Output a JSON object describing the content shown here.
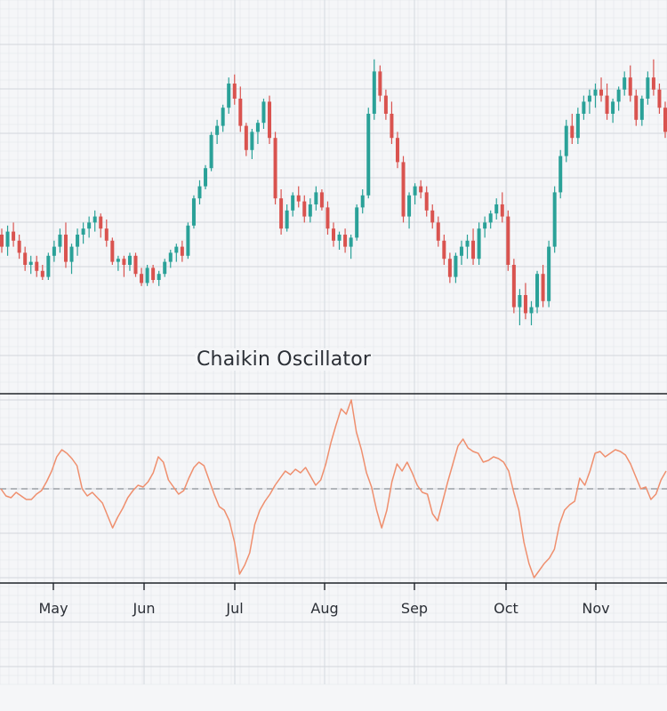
{
  "colors": {
    "background": "#f5f6f8",
    "grid_minor": "#e3e6ea",
    "grid_major": "#d2d6dc",
    "up_candle": "#2aa198",
    "down_candle": "#d9534f",
    "oscillator_line": "#ef8f6e",
    "zero_line": "#8a8f96",
    "divider": "#1f2329"
  },
  "chart_data": [
    {
      "type": "candlestick",
      "title": "",
      "x_ticks": [
        "May",
        "Jun",
        "Jul",
        "Aug",
        "Sep",
        "Oct",
        "Nov"
      ],
      "ylim": [
        0,
        100
      ],
      "grid": true,
      "candles": [
        {
          "o": 40,
          "h": 42,
          "l": 34,
          "c": 36
        },
        {
          "o": 36,
          "h": 43,
          "l": 33,
          "c": 41
        },
        {
          "o": 41,
          "h": 44,
          "l": 36,
          "c": 38
        },
        {
          "o": 38,
          "h": 40,
          "l": 32,
          "c": 34
        },
        {
          "o": 34,
          "h": 36,
          "l": 28,
          "c": 30
        },
        {
          "o": 30,
          "h": 33,
          "l": 27,
          "c": 31
        },
        {
          "o": 31,
          "h": 33,
          "l": 26,
          "c": 28
        },
        {
          "o": 28,
          "h": 30,
          "l": 25,
          "c": 26
        },
        {
          "o": 26,
          "h": 34,
          "l": 25,
          "c": 33
        },
        {
          "o": 33,
          "h": 38,
          "l": 31,
          "c": 36
        },
        {
          "o": 36,
          "h": 42,
          "l": 34,
          "c": 40
        },
        {
          "o": 40,
          "h": 44,
          "l": 29,
          "c": 31
        },
        {
          "o": 31,
          "h": 37,
          "l": 27,
          "c": 36
        },
        {
          "o": 36,
          "h": 42,
          "l": 33,
          "c": 40
        },
        {
          "o": 40,
          "h": 44,
          "l": 37,
          "c": 42
        },
        {
          "o": 42,
          "h": 46,
          "l": 39,
          "c": 44
        },
        {
          "o": 44,
          "h": 48,
          "l": 41,
          "c": 46
        },
        {
          "o": 46,
          "h": 47,
          "l": 39,
          "c": 42
        },
        {
          "o": 42,
          "h": 45,
          "l": 36,
          "c": 38
        },
        {
          "o": 38,
          "h": 39,
          "l": 30,
          "c": 31
        },
        {
          "o": 31,
          "h": 33,
          "l": 28,
          "c": 32
        },
        {
          "o": 32,
          "h": 33,
          "l": 26,
          "c": 30
        },
        {
          "o": 30,
          "h": 34,
          "l": 28,
          "c": 33
        },
        {
          "o": 33,
          "h": 34,
          "l": 26,
          "c": 27
        },
        {
          "o": 27,
          "h": 29,
          "l": 23,
          "c": 24
        },
        {
          "o": 24,
          "h": 30,
          "l": 23,
          "c": 29
        },
        {
          "o": 29,
          "h": 30,
          "l": 24,
          "c": 25
        },
        {
          "o": 25,
          "h": 28,
          "l": 23,
          "c": 27
        },
        {
          "o": 27,
          "h": 32,
          "l": 26,
          "c": 31
        },
        {
          "o": 31,
          "h": 35,
          "l": 29,
          "c": 34
        },
        {
          "o": 34,
          "h": 37,
          "l": 31,
          "c": 36
        },
        {
          "o": 36,
          "h": 38,
          "l": 31,
          "c": 33
        },
        {
          "o": 33,
          "h": 44,
          "l": 32,
          "c": 43
        },
        {
          "o": 43,
          "h": 53,
          "l": 42,
          "c": 52
        },
        {
          "o": 52,
          "h": 58,
          "l": 50,
          "c": 56
        },
        {
          "o": 56,
          "h": 63,
          "l": 55,
          "c": 62
        },
        {
          "o": 62,
          "h": 74,
          "l": 61,
          "c": 73
        },
        {
          "o": 73,
          "h": 78,
          "l": 70,
          "c": 76
        },
        {
          "o": 76,
          "h": 83,
          "l": 74,
          "c": 82
        },
        {
          "o": 82,
          "h": 92,
          "l": 80,
          "c": 90
        },
        {
          "o": 90,
          "h": 93,
          "l": 83,
          "c": 85
        },
        {
          "o": 85,
          "h": 89,
          "l": 74,
          "c": 76
        },
        {
          "o": 76,
          "h": 77,
          "l": 66,
          "c": 68
        },
        {
          "o": 68,
          "h": 75,
          "l": 65,
          "c": 74
        },
        {
          "o": 74,
          "h": 78,
          "l": 70,
          "c": 77
        },
        {
          "o": 77,
          "h": 85,
          "l": 75,
          "c": 84
        },
        {
          "o": 84,
          "h": 86,
          "l": 70,
          "c": 72
        },
        {
          "o": 72,
          "h": 74,
          "l": 50,
          "c": 52
        },
        {
          "o": 52,
          "h": 55,
          "l": 40,
          "c": 42
        },
        {
          "o": 42,
          "h": 50,
          "l": 41,
          "c": 48
        },
        {
          "o": 48,
          "h": 54,
          "l": 46,
          "c": 53
        },
        {
          "o": 53,
          "h": 56,
          "l": 49,
          "c": 51
        },
        {
          "o": 51,
          "h": 53,
          "l": 44,
          "c": 46
        },
        {
          "o": 46,
          "h": 52,
          "l": 44,
          "c": 50
        },
        {
          "o": 50,
          "h": 56,
          "l": 48,
          "c": 54
        },
        {
          "o": 54,
          "h": 55,
          "l": 48,
          "c": 49
        },
        {
          "o": 49,
          "h": 51,
          "l": 40,
          "c": 42
        },
        {
          "o": 42,
          "h": 44,
          "l": 36,
          "c": 38
        },
        {
          "o": 38,
          "h": 41,
          "l": 35,
          "c": 40
        },
        {
          "o": 40,
          "h": 42,
          "l": 34,
          "c": 36
        },
        {
          "o": 36,
          "h": 40,
          "l": 32,
          "c": 39
        },
        {
          "o": 39,
          "h": 50,
          "l": 38,
          "c": 49
        },
        {
          "o": 49,
          "h": 55,
          "l": 47,
          "c": 53
        },
        {
          "o": 53,
          "h": 82,
          "l": 52,
          "c": 80
        },
        {
          "o": 80,
          "h": 98,
          "l": 78,
          "c": 94
        },
        {
          "o": 94,
          "h": 96,
          "l": 84,
          "c": 86
        },
        {
          "o": 86,
          "h": 88,
          "l": 78,
          "c": 80
        },
        {
          "o": 80,
          "h": 84,
          "l": 70,
          "c": 72
        },
        {
          "o": 72,
          "h": 74,
          "l": 62,
          "c": 64
        },
        {
          "o": 64,
          "h": 66,
          "l": 44,
          "c": 46
        },
        {
          "o": 46,
          "h": 54,
          "l": 42,
          "c": 53
        },
        {
          "o": 53,
          "h": 57,
          "l": 50,
          "c": 56
        },
        {
          "o": 56,
          "h": 58,
          "l": 52,
          "c": 54
        },
        {
          "o": 54,
          "h": 56,
          "l": 46,
          "c": 48
        },
        {
          "o": 48,
          "h": 50,
          "l": 42,
          "c": 44
        },
        {
          "o": 44,
          "h": 46,
          "l": 36,
          "c": 38
        },
        {
          "o": 38,
          "h": 40,
          "l": 30,
          "c": 32
        },
        {
          "o": 32,
          "h": 34,
          "l": 24,
          "c": 26
        },
        {
          "o": 26,
          "h": 34,
          "l": 24,
          "c": 33
        },
        {
          "o": 33,
          "h": 38,
          "l": 30,
          "c": 36
        },
        {
          "o": 36,
          "h": 40,
          "l": 32,
          "c": 38
        },
        {
          "o": 38,
          "h": 42,
          "l": 30,
          "c": 32
        },
        {
          "o": 32,
          "h": 44,
          "l": 30,
          "c": 42
        },
        {
          "o": 42,
          "h": 46,
          "l": 39,
          "c": 44
        },
        {
          "o": 44,
          "h": 48,
          "l": 42,
          "c": 47
        },
        {
          "o": 47,
          "h": 52,
          "l": 45,
          "c": 50
        },
        {
          "o": 50,
          "h": 54,
          "l": 44,
          "c": 46
        },
        {
          "o": 46,
          "h": 48,
          "l": 28,
          "c": 30
        },
        {
          "o": 30,
          "h": 32,
          "l": 14,
          "c": 16
        },
        {
          "o": 16,
          "h": 22,
          "l": 10,
          "c": 20
        },
        {
          "o": 20,
          "h": 24,
          "l": 12,
          "c": 14
        },
        {
          "o": 14,
          "h": 18,
          "l": 10,
          "c": 16
        },
        {
          "o": 16,
          "h": 28,
          "l": 14,
          "c": 27
        },
        {
          "o": 27,
          "h": 30,
          "l": 16,
          "c": 18
        },
        {
          "o": 18,
          "h": 38,
          "l": 16,
          "c": 36
        },
        {
          "o": 36,
          "h": 56,
          "l": 34,
          "c": 54
        },
        {
          "o": 54,
          "h": 68,
          "l": 52,
          "c": 66
        },
        {
          "o": 66,
          "h": 78,
          "l": 64,
          "c": 76
        },
        {
          "o": 76,
          "h": 80,
          "l": 70,
          "c": 72
        },
        {
          "o": 72,
          "h": 82,
          "l": 70,
          "c": 80
        },
        {
          "o": 80,
          "h": 86,
          "l": 78,
          "c": 84
        },
        {
          "o": 84,
          "h": 88,
          "l": 80,
          "c": 86
        },
        {
          "o": 86,
          "h": 90,
          "l": 82,
          "c": 88
        },
        {
          "o": 88,
          "h": 92,
          "l": 84,
          "c": 86
        },
        {
          "o": 86,
          "h": 90,
          "l": 78,
          "c": 80
        },
        {
          "o": 80,
          "h": 85,
          "l": 77,
          "c": 84
        },
        {
          "o": 84,
          "h": 89,
          "l": 81,
          "c": 88
        },
        {
          "o": 88,
          "h": 94,
          "l": 86,
          "c": 92
        },
        {
          "o": 92,
          "h": 96,
          "l": 84,
          "c": 86
        },
        {
          "o": 86,
          "h": 88,
          "l": 76,
          "c": 78
        },
        {
          "o": 78,
          "h": 86,
          "l": 76,
          "c": 85
        },
        {
          "o": 85,
          "h": 94,
          "l": 83,
          "c": 92
        },
        {
          "o": 92,
          "h": 98,
          "l": 86,
          "c": 88
        },
        {
          "o": 88,
          "h": 90,
          "l": 80,
          "c": 82
        },
        {
          "o": 82,
          "h": 84,
          "l": 72,
          "c": 74
        }
      ]
    },
    {
      "type": "line",
      "title": "Chaikin Oscillator",
      "x_ticks": [
        "May",
        "Jun",
        "Jul",
        "Aug",
        "Sep",
        "Oct",
        "Nov"
      ],
      "ylim": [
        -100,
        100
      ],
      "zero_line": true,
      "grid": true,
      "series": [
        {
          "values": [
            0,
            -8,
            -10,
            -4,
            -8,
            -12,
            -12,
            -6,
            -2,
            8,
            20,
            36,
            44,
            40,
            34,
            26,
            0,
            -8,
            -4,
            -10,
            -16,
            -30,
            -44,
            -32,
            -22,
            -10,
            -2,
            4,
            2,
            8,
            18,
            36,
            30,
            10,
            2,
            -6,
            -2,
            12,
            24,
            30,
            26,
            10,
            -6,
            -20,
            -24,
            -36,
            -60,
            -96,
            -86,
            -72,
            -40,
            -24,
            -14,
            -6,
            4,
            12,
            20,
            16,
            22,
            18,
            24,
            14,
            4,
            10,
            28,
            52,
            72,
            90,
            84,
            100,
            64,
            44,
            18,
            2,
            -24,
            -44,
            -24,
            8,
            28,
            20,
            30,
            18,
            4,
            -4,
            -6,
            -28,
            -36,
            -14,
            8,
            28,
            48,
            56,
            46,
            42,
            40,
            30,
            32,
            36,
            34,
            30,
            20,
            -4,
            -24,
            -60,
            -84,
            -100,
            -92,
            -84,
            -78,
            -68,
            -40,
            -24,
            -18,
            -14,
            12,
            4,
            20,
            40,
            42,
            36,
            40,
            44,
            42,
            38,
            28,
            14,
            0,
            2,
            -12,
            -6,
            10,
            20
          ]
        }
      ]
    }
  ]
}
